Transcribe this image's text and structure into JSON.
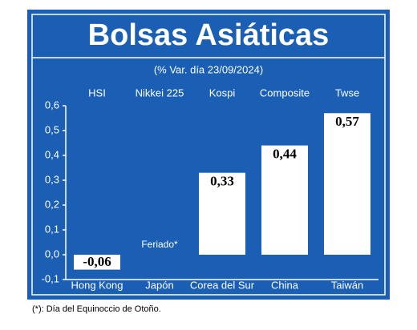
{
  "chart_data": {
    "type": "bar",
    "title": "Bolsas Asiáticas",
    "subtitle": "(% Var. día 23/09/2024)",
    "indices": [
      "HSI",
      "Nikkei 225",
      "Kospi",
      "Composite",
      "Twse"
    ],
    "categories": [
      "Hong Kong",
      "Japón",
      "Corea del Sur",
      "China",
      "Taiwán"
    ],
    "values": [
      -0.06,
      null,
      0.33,
      0.44,
      0.57
    ],
    "value_labels": [
      "-0,06",
      "Feriado*",
      "0,33",
      "0,44",
      "0,57"
    ],
    "color": "#ffffff",
    "ylim": [
      -0.1,
      0.6
    ],
    "yticks": [
      {
        "value": -0.1,
        "label": "-0,1"
      },
      {
        "value": 0,
        "label": "0,0"
      },
      {
        "value": 0.1,
        "label": "0,1"
      },
      {
        "value": 0.2,
        "label": "0,2"
      },
      {
        "value": 0.3,
        "label": "0,3"
      },
      {
        "value": 0.4,
        "label": "0,4"
      },
      {
        "value": 0.5,
        "label": "0,5"
      },
      {
        "value": 0.6,
        "label": "0,6"
      }
    ],
    "footnote": "(*): Día del Equinoccio de Otoño."
  }
}
